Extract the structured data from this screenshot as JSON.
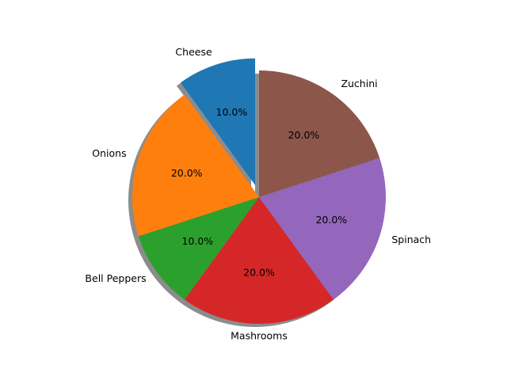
{
  "chart_data": {
    "type": "pie",
    "title": "",
    "start_angle_deg": 90,
    "direction": "counterclockwise",
    "shadow": true,
    "explode": [
      0.1,
      0,
      0,
      0,
      0,
      0
    ],
    "slices": [
      {
        "label": "Cheese",
        "value": 10,
        "pct_label": "10.0%",
        "color": "#1f77b4"
      },
      {
        "label": "Onions",
        "value": 20,
        "pct_label": "20.0%",
        "color": "#ff7f0e"
      },
      {
        "label": "Bell Peppers",
        "value": 10,
        "pct_label": "10.0%",
        "color": "#2ca02c"
      },
      {
        "label": "Mashrooms",
        "value": 20,
        "pct_label": "20.0%",
        "color": "#d62728"
      },
      {
        "label": "Spinach",
        "value": 20,
        "pct_label": "20.0%",
        "color": "#9467bd"
      },
      {
        "label": "Zuchini",
        "value": 20,
        "pct_label": "20.0%",
        "color": "#8c564b"
      }
    ]
  }
}
